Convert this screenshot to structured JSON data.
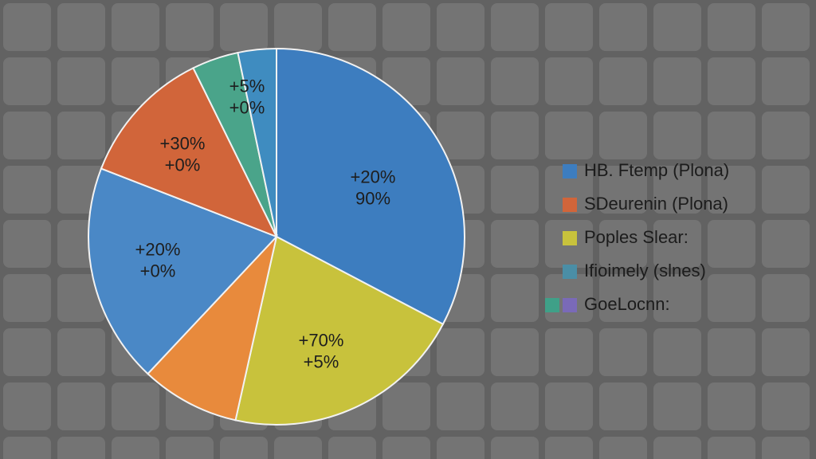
{
  "chart_data": {
    "type": "pie",
    "values": [
      32.7,
      20.8,
      8.5,
      18.9,
      11.8,
      4.0,
      3.3
    ],
    "colors": [
      "#3d7dbf",
      "#c8c23c",
      "#e88a3c",
      "#4a88c6",
      "#d1653a",
      "#4aa48a",
      "#3f8cc0"
    ],
    "slice_labels": [
      [
        "+20%",
        "90%"
      ],
      [
        "+70%",
        "+5%"
      ],
      null,
      [
        "+20%",
        "+0%"
      ],
      [
        "+30%",
        "+0%"
      ],
      [
        "+5%",
        "+0%"
      ],
      null
    ],
    "legend": [
      {
        "label": "HB. Ftemp (Plona)",
        "colors": [
          "#3d7dbf"
        ]
      },
      {
        "label": "SDeurenin (Plona)",
        "colors": [
          "#d1653a"
        ]
      },
      {
        "label": "Poples Slear:",
        "colors": [
          "#c8c23c"
        ]
      },
      {
        "label": "Ifioimely (slnes)",
        "colors": [
          "#4a8ea6"
        ]
      },
      {
        "label": "GoeLocnn:",
        "colors": [
          "#3fa088",
          "#7a6ab8"
        ]
      }
    ]
  }
}
